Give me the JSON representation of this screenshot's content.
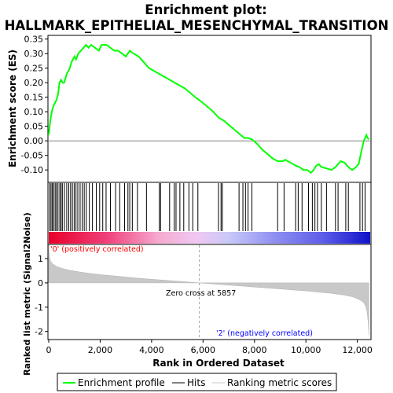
{
  "title_line1": "Enrichment plot:",
  "title_line2": "HALLMARK_EPITHELIAL_MESENCHYMAL_TRANSITION",
  "colors": {
    "es_line": "#00ff00",
    "hits": "#000000",
    "metric_fill": "#c8c8c8",
    "positive_label": "#ff0000",
    "negative_label": "#0000ff",
    "frame": "#000000"
  },
  "labels": {
    "positive": "'0' (positively correlated)",
    "negative": "'2' (negatively correlated)",
    "zero_cross": "Zero cross at 5857"
  },
  "legend": {
    "items": [
      {
        "label": "Enrichment profile",
        "icon": "green-line"
      },
      {
        "label": "Hits",
        "icon": "black-line"
      },
      {
        "label": "Ranking metric scores",
        "icon": "gray-line"
      }
    ]
  },
  "chart_data": [
    {
      "type": "line",
      "name": "enrichment-score",
      "ylabel": "Enrichment score (ES)",
      "xlim": [
        0,
        12500
      ],
      "ylim": [
        -0.14,
        0.36
      ],
      "y_ticks": [
        0.35,
        0.3,
        0.25,
        0.2,
        0.15,
        0.1,
        0.05,
        0.0,
        -0.05,
        -0.1
      ],
      "y_tick_labels": [
        "0.35",
        "0.30",
        "0.25",
        "0.20",
        "0.15",
        "0.10",
        "0.05",
        "0.00",
        "-0.05",
        "-0.10"
      ],
      "x": [
        0,
        60,
        120,
        180,
        240,
        300,
        360,
        420,
        480,
        540,
        600,
        700,
        760,
        820,
        880,
        940,
        1000,
        1060,
        1150,
        1250,
        1350,
        1450,
        1550,
        1650,
        1800,
        1950,
        2050,
        2150,
        2250,
        2400,
        2550,
        2700,
        2850,
        3000,
        3150,
        3300,
        3500,
        3700,
        3900,
        4100,
        4300,
        4500,
        4700,
        4900,
        5100,
        5300,
        5500,
        5700,
        5857,
        6000,
        6200,
        6400,
        6600,
        6800,
        7000,
        7200,
        7400,
        7600,
        7750,
        7900,
        8100,
        8300,
        8500,
        8700,
        8900,
        9100,
        9200,
        9300,
        9400,
        9500,
        9600,
        9750,
        9900,
        10050,
        10200,
        10300,
        10400,
        10500,
        10600,
        10800,
        11000,
        11150,
        11250,
        11350,
        11500,
        11650,
        11800,
        11950,
        12050,
        12100,
        12150,
        12200,
        12250,
        12300,
        12350,
        12400,
        12450
      ],
      "y": [
        0.02,
        0.07,
        0.1,
        0.12,
        0.13,
        0.14,
        0.16,
        0.2,
        0.21,
        0.2,
        0.2,
        0.23,
        0.24,
        0.25,
        0.27,
        0.28,
        0.29,
        0.28,
        0.3,
        0.31,
        0.32,
        0.33,
        0.32,
        0.33,
        0.32,
        0.31,
        0.33,
        0.33,
        0.33,
        0.32,
        0.31,
        0.31,
        0.3,
        0.29,
        0.31,
        0.3,
        0.29,
        0.27,
        0.25,
        0.24,
        0.23,
        0.22,
        0.21,
        0.2,
        0.19,
        0.18,
        0.165,
        0.15,
        0.14,
        0.13,
        0.115,
        0.1,
        0.08,
        0.07,
        0.055,
        0.04,
        0.025,
        0.01,
        0.01,
        0.005,
        -0.01,
        -0.03,
        -0.045,
        -0.06,
        -0.07,
        -0.07,
        -0.065,
        -0.07,
        -0.075,
        -0.08,
        -0.085,
        -0.09,
        -0.1,
        -0.1,
        -0.11,
        -0.1,
        -0.085,
        -0.08,
        -0.09,
        -0.095,
        -0.1,
        -0.09,
        -0.08,
        -0.07,
        -0.075,
        -0.09,
        -0.1,
        -0.09,
        -0.08,
        -0.06,
        -0.04,
        -0.02,
        0.0,
        0.01,
        0.02,
        0.01,
        0.005
      ]
    },
    {
      "type": "scatter",
      "name": "hits",
      "x": [
        40,
        90,
        140,
        190,
        250,
        300,
        360,
        430,
        480,
        530,
        610,
        700,
        780,
        850,
        920,
        990,
        1060,
        1130,
        1220,
        1300,
        1380,
        1460,
        1580,
        1700,
        1850,
        1980,
        2100,
        2230,
        2400,
        2600,
        2760,
        2950,
        3080,
        3150,
        3250,
        3450,
        3800,
        4300,
        4350,
        4700,
        4880,
        4950,
        5100,
        5250,
        5450,
        5600,
        5800,
        6600,
        6700,
        6750,
        7400,
        7550,
        7650,
        7750,
        7900,
        8900,
        9150,
        9600,
        9700,
        9850,
        10100,
        10250,
        10350,
        10450,
        10600,
        10800,
        11150,
        11250,
        11550,
        11650,
        12100,
        12200,
        12300
      ]
    },
    {
      "type": "area",
      "name": "ranking-metric",
      "xlabel": "Rank in Ordered Dataset",
      "ylabel": "Ranked list metric (Signal2Noise)",
      "xlim": [
        0,
        12500
      ],
      "ylim": [
        -2.3,
        1.55
      ],
      "x_ticks": [
        0,
        2000,
        4000,
        6000,
        8000,
        10000,
        12000
      ],
      "x_tick_labels": [
        "0",
        "2,000",
        "4,000",
        "6,000",
        "8,000",
        "10,000",
        "12,000"
      ],
      "y_ticks": [
        1,
        0,
        -1,
        -2
      ],
      "y_tick_labels": [
        "1",
        "0",
        "-1",
        "-2"
      ],
      "x": [
        0,
        20,
        60,
        120,
        200,
        300,
        500,
        800,
        1200,
        1600,
        2000,
        2500,
        3000,
        3500,
        4000,
        4500,
        5000,
        5500,
        5857,
        6500,
        7000,
        7500,
        8000,
        8500,
        9000,
        9500,
        10000,
        10500,
        11000,
        11500,
        11800,
        12000,
        12150,
        12250,
        12320,
        12380,
        12420,
        12450
      ],
      "y": [
        1.55,
        1.1,
        0.92,
        0.82,
        0.75,
        0.68,
        0.6,
        0.52,
        0.45,
        0.39,
        0.34,
        0.29,
        0.24,
        0.19,
        0.15,
        0.11,
        0.07,
        0.03,
        0.0,
        -0.05,
        -0.09,
        -0.13,
        -0.17,
        -0.21,
        -0.25,
        -0.29,
        -0.33,
        -0.38,
        -0.43,
        -0.5,
        -0.57,
        -0.65,
        -0.73,
        -0.82,
        -0.95,
        -1.2,
        -1.6,
        -2.15
      ]
    }
  ]
}
